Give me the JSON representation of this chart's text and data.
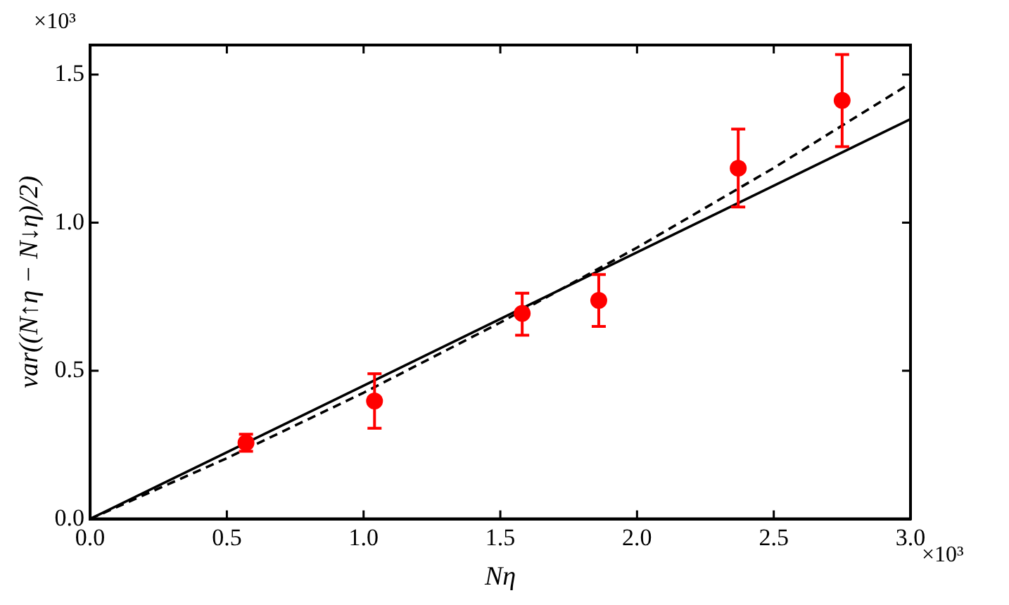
{
  "chart_data": {
    "type": "scatter",
    "xlabel": "Nη",
    "ylabel": "var((N↑η − N↓η)/2)",
    "xlim": [
      0,
      3
    ],
    "ylim": [
      0,
      1.6
    ],
    "xticks": [
      {
        "value": 0,
        "label": "0.0"
      },
      {
        "value": 0.5,
        "label": "0.5"
      },
      {
        "value": 1,
        "label": "1.0"
      },
      {
        "value": 1.5,
        "label": "1.5"
      },
      {
        "value": 2,
        "label": "2.0"
      },
      {
        "value": 2.5,
        "label": "2.5"
      },
      {
        "value": 3,
        "label": "3.0"
      }
    ],
    "yticks": [
      {
        "value": 0,
        "label": "0.0"
      },
      {
        "value": 0.5,
        "label": "0.5"
      },
      {
        "value": 1,
        "label": "1.0"
      },
      {
        "value": 1.5,
        "label": "1.5"
      }
    ],
    "annotations": [
      "×10³",
      "×10³"
    ],
    "series": [
      {
        "type": "scatter",
        "color": "#ff0000",
        "marker": "circle",
        "x": [
          0.57,
          1.04,
          1.58,
          1.86,
          2.37,
          2.75
        ],
        "values": [
          0.257,
          0.398,
          0.694,
          0.738,
          1.184,
          1.413
        ],
        "errors": [
          [
            0.228,
            0.286
          ],
          [
            0.306,
            0.49
          ],
          [
            0.62,
            0.762
          ],
          [
            0.65,
            0.825
          ],
          [
            1.053,
            1.316
          ],
          [
            1.257,
            1.568
          ]
        ]
      },
      {
        "type": "line",
        "color": "#000000",
        "marker": "none",
        "line_style": "solid",
        "x": [
          0,
          3
        ],
        "values": [
          0,
          1.35
        ]
      },
      {
        "type": "line",
        "color": "#000000",
        "marker": "none",
        "line_style": "dashed",
        "x": [
          0,
          0.5,
          1,
          1.5,
          2,
          2.5,
          3
        ],
        "values": [
          0,
          0.205,
          0.426,
          0.663,
          0.916,
          1.185,
          1.471
        ]
      }
    ]
  }
}
